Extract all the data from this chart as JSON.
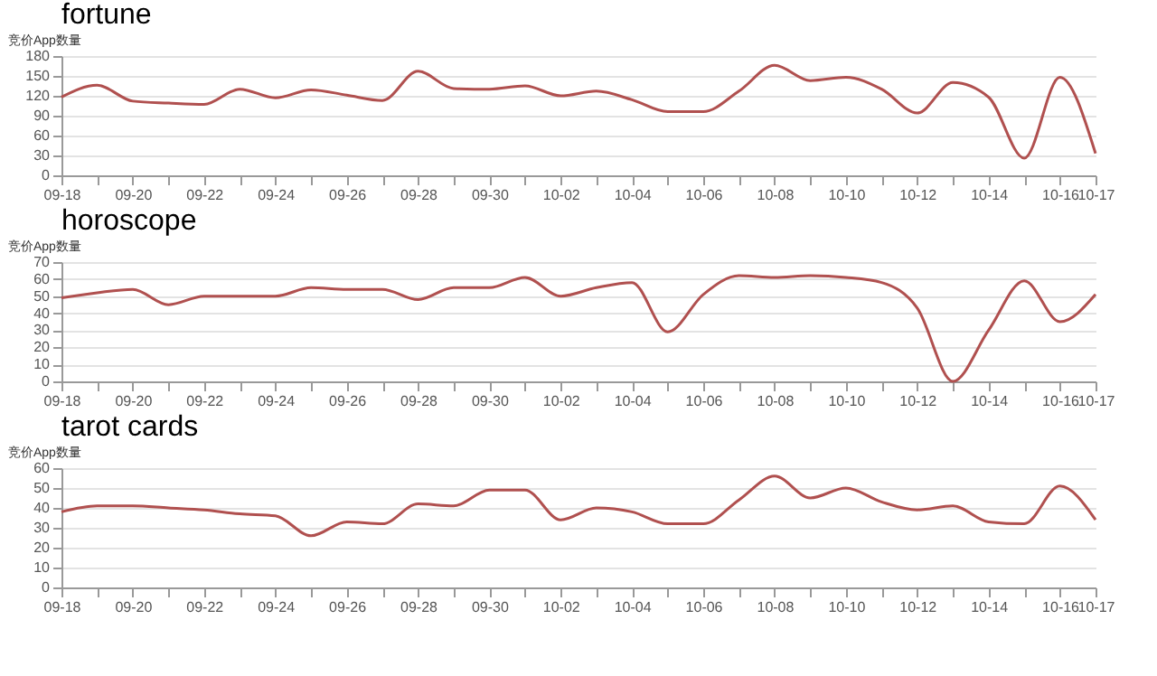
{
  "chart_data": [
    {
      "type": "line",
      "title": "fortune",
      "ylabel": "竞价App数量",
      "categories": [
        "09-18",
        null,
        "09-20",
        null,
        "09-22",
        null,
        "09-24",
        null,
        "09-26",
        null,
        "09-28",
        null,
        "09-30",
        null,
        "10-02",
        null,
        "10-04",
        null,
        "10-06",
        null,
        "10-08",
        null,
        "10-10",
        null,
        "10-12",
        null,
        "10-14",
        null,
        "10-16",
        "10-17"
      ],
      "series": [
        {
          "color": "#b0504f",
          "values": [
            118,
            136,
            112,
            109,
            107,
            130,
            117,
            129,
            121,
            113,
            157,
            131,
            130,
            135,
            120,
            127,
            114,
            96,
            96,
            127,
            166,
            143,
            148,
            130,
            94,
            140,
            118,
            26,
            148,
            33
          ]
        }
      ],
      "ylim": [
        0,
        180
      ],
      "yticks": [
        0,
        30,
        60,
        90,
        120,
        150,
        180
      ],
      "grid": "y"
    },
    {
      "type": "line",
      "title": "horoscope",
      "ylabel": "竞价App数量",
      "categories": [
        "09-18",
        null,
        "09-20",
        null,
        "09-22",
        null,
        "09-24",
        null,
        "09-26",
        null,
        "09-28",
        null,
        "09-30",
        null,
        "10-02",
        null,
        "10-04",
        null,
        "10-06",
        null,
        "10-08",
        null,
        "10-10",
        null,
        "10-12",
        null,
        "10-14",
        null,
        "10-16",
        "10-17"
      ],
      "series": [
        {
          "color": "#b0504f",
          "values": [
            49,
            52,
            54,
            45,
            50,
            50,
            50,
            55,
            54,
            54,
            48,
            55,
            55,
            61,
            50,
            55,
            58,
            29,
            51,
            62,
            61,
            62,
            61,
            58,
            43,
            0,
            30,
            59,
            35,
            51
          ]
        }
      ],
      "ylim": [
        0,
        70
      ],
      "yticks": [
        0,
        10,
        20,
        30,
        40,
        50,
        60,
        70
      ],
      "grid": "y"
    },
    {
      "type": "line",
      "title": "tarot cards",
      "ylabel": "竞价App数量",
      "categories": [
        "09-18",
        null,
        "09-20",
        null,
        "09-22",
        null,
        "09-24",
        null,
        "09-26",
        null,
        "09-28",
        null,
        "09-30",
        null,
        "10-02",
        null,
        "10-04",
        null,
        "10-06",
        null,
        "10-08",
        null,
        "10-10",
        null,
        "10-12",
        null,
        "10-14",
        null,
        "10-16",
        "10-17"
      ],
      "series": [
        {
          "color": "#b0504f",
          "values": [
            38,
            41,
            41,
            40,
            39,
            37,
            36,
            26,
            33,
            32,
            42,
            41,
            49,
            49,
            34,
            40,
            38,
            32,
            32,
            44,
            56,
            45,
            50,
            43,
            39,
            41,
            33,
            32,
            51,
            34
          ]
        }
      ],
      "ylim": [
        0,
        60
      ],
      "yticks": [
        0,
        10,
        20,
        30,
        40,
        50,
        60
      ],
      "grid": "y"
    }
  ]
}
